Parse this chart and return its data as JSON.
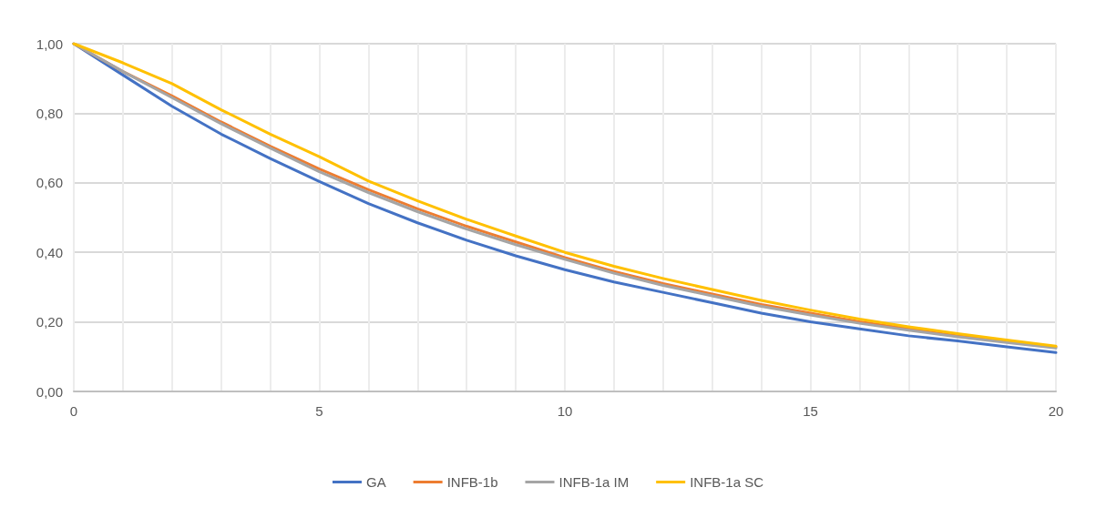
{
  "chart_data": {
    "type": "line",
    "x": [
      0,
      1,
      2,
      3,
      4,
      5,
      6,
      7,
      8,
      9,
      10,
      11,
      12,
      13,
      14,
      15,
      16,
      17,
      18,
      19,
      20
    ],
    "series": [
      {
        "name": "GA",
        "color": "#4472c4",
        "values": [
          1,
          0.91,
          0.82,
          0.74,
          0.67,
          0.604,
          0.54,
          0.485,
          0.435,
          0.39,
          0.35,
          0.315,
          0.285,
          0.255,
          0.225,
          0.2,
          0.18,
          0.16,
          0.145,
          0.128,
          0.112
        ]
      },
      {
        "name": "INFB-1b",
        "color": "#ed7d31",
        "values": [
          1,
          0.92,
          0.85,
          0.775,
          0.705,
          0.64,
          0.58,
          0.525,
          0.475,
          0.43,
          0.385,
          0.345,
          0.31,
          0.28,
          0.25,
          0.225,
          0.2,
          0.18,
          0.16,
          0.145,
          0.128
        ]
      },
      {
        "name": "INFB-1a IM",
        "color": "#a5a5a5",
        "values": [
          1,
          0.92,
          0.845,
          0.77,
          0.7,
          0.632,
          0.572,
          0.517,
          0.467,
          0.422,
          0.38,
          0.34,
          0.305,
          0.275,
          0.245,
          0.22,
          0.196,
          0.176,
          0.157,
          0.141,
          0.125
        ]
      },
      {
        "name": "INFB-1a SC",
        "color": "#ffc000",
        "values": [
          1,
          0.945,
          0.885,
          0.81,
          0.74,
          0.675,
          0.605,
          0.548,
          0.495,
          0.447,
          0.4,
          0.36,
          0.325,
          0.293,
          0.262,
          0.234,
          0.208,
          0.186,
          0.166,
          0.148,
          0.13
        ]
      }
    ],
    "xlim": [
      0,
      20
    ],
    "xticks": [
      0,
      {
        "value": 1,
        "label": null
      },
      {
        "value": 2,
        "label": null
      },
      {
        "value": 3,
        "label": null
      },
      {
        "value": 4,
        "label": null
      },
      5,
      {
        "value": 6,
        "label": null
      },
      {
        "value": 7,
        "label": null
      },
      {
        "value": 8,
        "label": null
      },
      {
        "value": 9,
        "label": null
      },
      10,
      {
        "value": 11,
        "label": null
      },
      {
        "value": 12,
        "label": null
      },
      {
        "value": 13,
        "label": null
      },
      {
        "value": 14,
        "label": null
      },
      15,
      {
        "value": 16,
        "label": null
      },
      {
        "value": 17,
        "label": null
      },
      {
        "value": 18,
        "label": null
      },
      {
        "value": 19,
        "label": null
      },
      20
    ],
    "ylim": [
      0,
      1
    ],
    "yticks": [
      {
        "value": 0,
        "label": "0,00"
      },
      {
        "value": 0.2,
        "label": "0,20"
      },
      {
        "value": 0.4,
        "label": "0,40"
      },
      {
        "value": 0.6,
        "label": "0,60"
      },
      {
        "value": 0.8,
        "label": "0,80"
      },
      {
        "value": 1,
        "label": "1,00"
      }
    ],
    "grid": true,
    "legend": "bottom",
    "marker": "none",
    "line_style": "solid"
  }
}
